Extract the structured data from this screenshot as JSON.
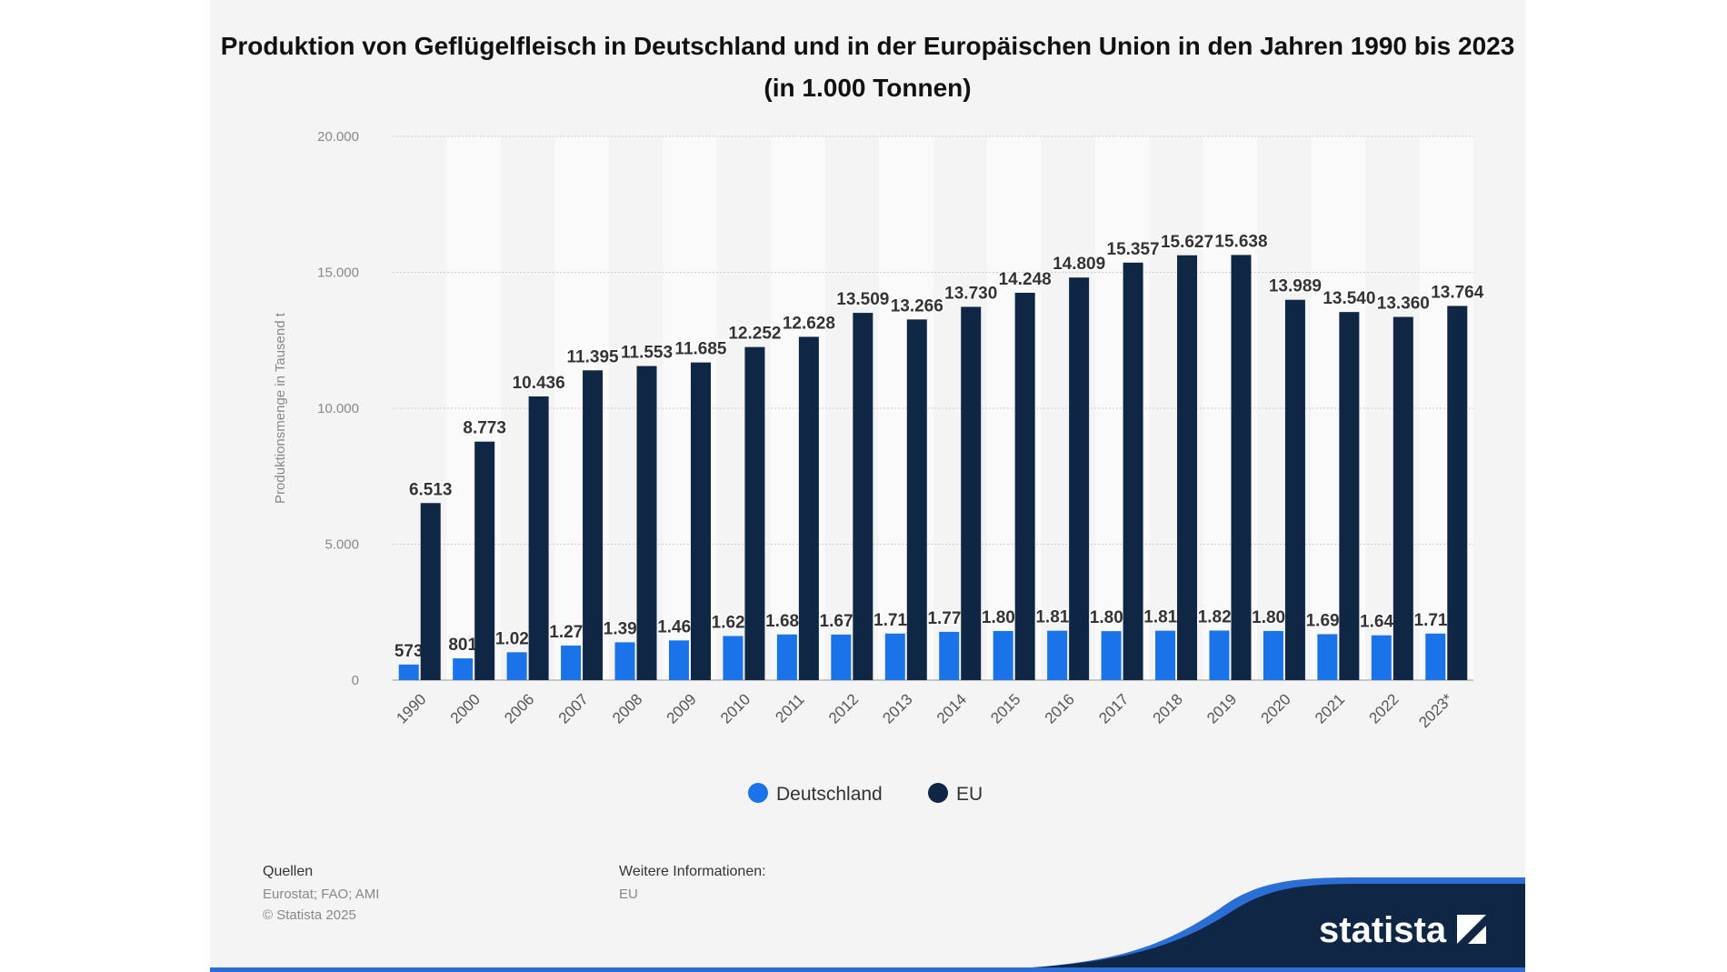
{
  "chart_data": {
    "type": "bar",
    "title": "Produktion von Geflügelfleisch in Deutschland und in der Europäischen Union in den Jahren 1990 bis 2023 (in 1.000 Tonnen)",
    "xlabel": "",
    "ylabel": "Produktionsmenge in Tausend t",
    "ylim": [
      0,
      20000
    ],
    "yticks": [
      "0",
      "5.000",
      "10.000",
      "15.000",
      "20.000"
    ],
    "grid": true,
    "legend": "bottom",
    "categories": [
      "1990",
      "2000",
      "2006",
      "2007",
      "2008",
      "2009",
      "2010",
      "2011",
      "2012",
      "2013",
      "2014",
      "2015",
      "2016",
      "2017",
      "2018",
      "2019",
      "2020",
      "2021",
      "2022",
      "2023*"
    ],
    "series": [
      {
        "name": "Deutschland",
        "color": "#1a73e8",
        "values": [
          573,
          801,
          1025,
          1273,
          1391,
          1460,
          1623,
          1680,
          1676,
          1714,
          1775,
          1807,
          1817,
          1802,
          1818,
          1824,
          1807,
          1691,
          1648,
          1713
        ],
        "labels": [
          "573",
          "801",
          "1.025",
          "1.273",
          "1.391",
          "1.460",
          "1.623",
          "1.680",
          "1.676",
          "1.714",
          "1.775",
          "1.807",
          "1.817",
          "1.802",
          "1.818",
          "1.824",
          "1.807",
          "1.691",
          "1.648",
          "1.713"
        ]
      },
      {
        "name": "EU",
        "color": "#0f2744",
        "values": [
          6513,
          8773,
          10436,
          11395,
          11553,
          11685,
          12252,
          12628,
          13509,
          13266,
          13730,
          14248,
          14809,
          15357,
          15627,
          15638,
          13989,
          13540,
          13360,
          13764
        ],
        "labels": [
          "6.513",
          "8.773",
          "10.436",
          "11.395",
          "11.553",
          "11.685",
          "12.252",
          "12.628",
          "13.509",
          "13.266",
          "13.730",
          "14.248",
          "14.809",
          "15.357",
          "15.627",
          "15.638",
          "13.989",
          "13.540",
          "13.360",
          "13.764"
        ]
      }
    ]
  },
  "footer": {
    "sources_heading": "Quellen",
    "sources": "Eurostat; FAO; AMI",
    "copyright": "© Statista 2025",
    "more_info_heading": "Weitere Informationen:",
    "more_info": "EU",
    "logo": "statista"
  }
}
